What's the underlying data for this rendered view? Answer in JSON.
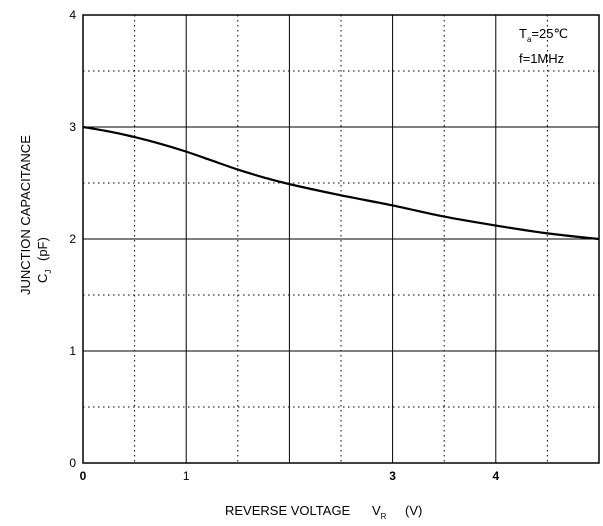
{
  "chart_data": {
    "type": "line",
    "xlabel": "REVERSE VOLTAGE",
    "xlabel_symbol": "V",
    "xlabel_symbol_sub": "R",
    "xlabel_unit": "(V)",
    "ylabel": "JUNCTION CAPACITANCE",
    "ylabel_symbol": "C",
    "ylabel_symbol_sub": "J",
    "ylabel_unit": "(pF)",
    "xlim": [
      0,
      5
    ],
    "ylim": [
      0,
      4
    ],
    "x_ticks": [
      {
        "value": 0,
        "label": "0",
        "bold": true
      },
      {
        "value": 1,
        "label": "1",
        "bold": false
      },
      {
        "value": 3,
        "label": "3",
        "bold": true
      },
      {
        "value": 4,
        "label": "4",
        "bold": true
      }
    ],
    "y_ticks": [
      {
        "value": 0,
        "label": "0"
      },
      {
        "value": 1,
        "label": "1"
      },
      {
        "value": 2,
        "label": "2"
      },
      {
        "value": 3,
        "label": "3"
      },
      {
        "value": 4,
        "label": "4"
      }
    ],
    "major_grid_x": [
      1,
      2,
      3,
      4
    ],
    "major_grid_y": [
      1,
      2,
      3
    ],
    "minor_grid_x": [
      0.5,
      1.5,
      2.5,
      3.5,
      4.5
    ],
    "minor_grid_y": [
      0.5,
      1.5,
      2.5,
      3.5
    ],
    "grid": true,
    "annotation": {
      "line1_symbol": "T",
      "line1_sub": "a",
      "line1_value": "=25℃",
      "line2": "f=1MHz"
    },
    "series": [
      {
        "color": "#000000",
        "x": [
          0,
          0.25,
          0.5,
          0.75,
          1.0,
          1.25,
          1.5,
          1.75,
          2.0,
          2.5,
          3.0,
          3.5,
          4.0,
          4.5,
          5.0
        ],
        "y": [
          3.0,
          2.96,
          2.91,
          2.85,
          2.78,
          2.7,
          2.62,
          2.55,
          2.49,
          2.39,
          2.3,
          2.2,
          2.12,
          2.05,
          2.0
        ]
      }
    ]
  }
}
